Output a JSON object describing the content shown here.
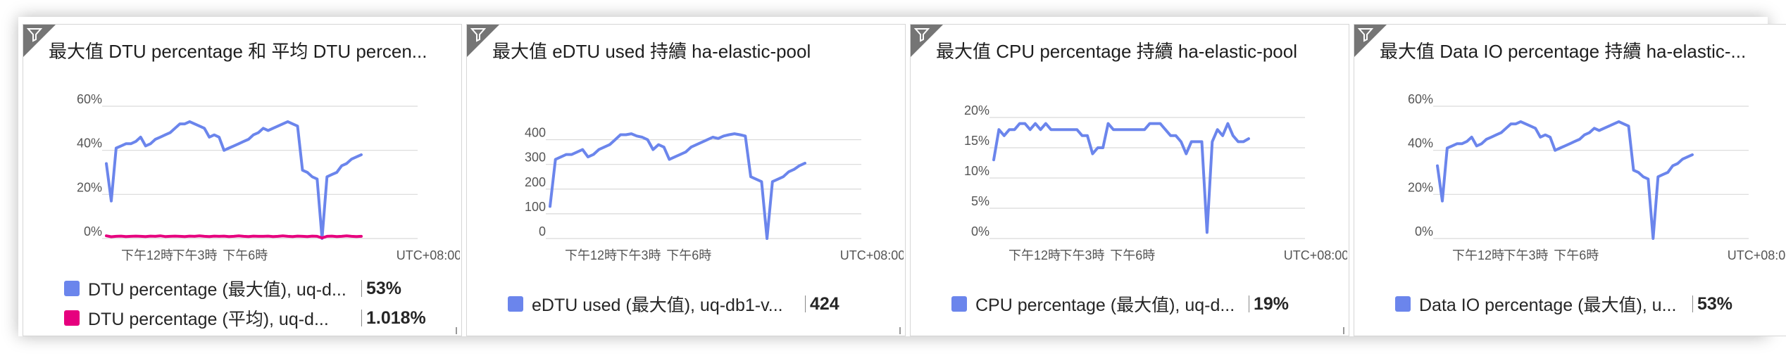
{
  "colors": {
    "primary": "#6b85ec",
    "secondary": "#e6007e",
    "filter_corner": "#757575"
  },
  "icons": {
    "filter": "filter-funnel-icon"
  },
  "tiles": [
    {
      "title": "最大值 DTU percentage 和 平均 DTU percen...",
      "y_ticks": [
        "60%",
        "40%",
        "20%",
        "0%"
      ],
      "x_ticks": [
        "下午12時",
        "下午3時",
        "下午6時"
      ],
      "timezone": "UTC+08:00",
      "legend": [
        {
          "label": "DTU percentage (最大值), uq-d...",
          "value": "53%"
        },
        {
          "label": "DTU percentage (平均), uq-d...",
          "value": "1.018%"
        }
      ]
    },
    {
      "title": "最大值 eDTU used 持續 ha-elastic-pool",
      "y_ticks": [
        "400",
        "300",
        "200",
        "100",
        "0"
      ],
      "x_ticks": [
        "下午12時",
        "下午3時",
        "下午6時"
      ],
      "timezone": "UTC+08:00",
      "legend": [
        {
          "label": "eDTU used (最大值), uq-db1-v...",
          "value": "424"
        }
      ]
    },
    {
      "title": "最大值 CPU percentage 持續 ha-elastic-pool",
      "y_ticks": [
        "20%",
        "15%",
        "10%",
        "5%",
        "0%"
      ],
      "x_ticks": [
        "下午12時",
        "下午3時",
        "下午6時"
      ],
      "timezone": "UTC+08:00",
      "legend": [
        {
          "label": "CPU percentage (最大值), uq-d...",
          "value": "19%"
        }
      ]
    },
    {
      "title": "最大值 Data IO percentage 持續 ha-elastic-...",
      "y_ticks": [
        "60%",
        "40%",
        "20%",
        "0%"
      ],
      "x_ticks": [
        "下午12時",
        "下午3時",
        "下午6時"
      ],
      "timezone": "UTC+08:00",
      "legend": [
        {
          "label": "Data IO percentage (最大值), u...",
          "value": "53%"
        }
      ]
    }
  ],
  "chart_data": [
    {
      "type": "line",
      "title": "最大值 DTU percentage 和 平均 DTU percen...",
      "ylim": [
        0,
        60
      ],
      "y_ticks": [
        0,
        20,
        40,
        60
      ],
      "x_ticks": [
        "下午12時",
        "下午3時",
        "下午6時"
      ],
      "series": [
        {
          "name": "DTU percentage (最大值), uq-d...",
          "values": [
            34,
            17,
            41,
            42,
            43,
            43,
            44,
            46,
            42,
            43,
            45,
            46,
            47,
            48,
            50,
            52,
            52,
            53,
            52,
            51,
            50,
            46,
            47,
            46,
            40,
            41,
            42,
            43,
            44,
            45,
            47,
            48,
            50,
            49,
            50,
            51,
            52,
            53,
            52,
            51,
            31,
            30,
            28,
            27,
            0,
            28,
            29,
            30,
            33,
            34,
            36,
            37,
            38
          ]
        },
        {
          "name": "DTU percentage (平均), uq-d...",
          "values": [
            1.2,
            0.8,
            1.0,
            1.1,
            0.9,
            1.0,
            1.1,
            1.0,
            0.9,
            1.1,
            1.0,
            1.2,
            0.9,
            1.0,
            1.1,
            1.0,
            0.9,
            1.1,
            1.0,
            1.2,
            1.0,
            0.9,
            1.1,
            1.0,
            1.1,
            0.9,
            1.0,
            1.2,
            1.0,
            0.9,
            1.1,
            1.0,
            1.0,
            1.1,
            0.9,
            1.0,
            1.2,
            1.0,
            0.9,
            1.1,
            1.0,
            0.9,
            1.1,
            1.0,
            0.3,
            1.0,
            1.1,
            0.9,
            1.0,
            1.2,
            1.0,
            0.9,
            1.0
          ]
        }
      ]
    },
    {
      "type": "line",
      "title": "最大值 eDTU used 持續 ha-elastic-pool",
      "ylim": [
        0,
        450
      ],
      "y_ticks": [
        0,
        100,
        200,
        300,
        400
      ],
      "x_ticks": [
        "下午12時",
        "下午3時",
        "下午6時"
      ],
      "series": [
        {
          "name": "eDTU used (最大值), uq-db1-v...",
          "values": [
            130,
            320,
            330,
            340,
            340,
            350,
            360,
            330,
            340,
            360,
            370,
            380,
            400,
            420,
            420,
            424,
            415,
            410,
            400,
            360,
            380,
            370,
            320,
            330,
            340,
            350,
            370,
            380,
            390,
            400,
            410,
            405,
            415,
            420,
            424,
            420,
            415,
            250,
            240,
            230,
            0,
            230,
            240,
            250,
            270,
            280,
            295,
            305
          ]
        }
      ]
    },
    {
      "type": "line",
      "title": "最大值 CPU percentage 持續 ha-elastic-pool",
      "ylim": [
        0,
        20
      ],
      "y_ticks": [
        0,
        5,
        10,
        15,
        20
      ],
      "x_ticks": [
        "下午12時",
        "下午3時",
        "下午6時"
      ],
      "series": [
        {
          "name": "CPU percentage (最大值), uq-d...",
          "values": [
            13,
            18,
            17,
            18,
            18,
            19,
            19,
            18,
            19,
            18,
            19,
            18,
            18,
            18,
            18,
            18,
            18,
            17,
            17,
            14,
            15,
            15,
            19,
            18,
            18,
            18,
            18,
            18,
            18,
            18,
            19,
            19,
            19,
            18,
            17,
            17,
            16,
            14,
            16,
            16,
            16,
            1,
            16,
            18,
            17,
            19,
            17,
            16,
            16,
            16.5
          ]
        }
      ]
    },
    {
      "type": "line",
      "title": "最大值 Data IO percentage 持續 ha-elastic-...",
      "ylim": [
        0,
        60
      ],
      "y_ticks": [
        0,
        20,
        40,
        60
      ],
      "x_ticks": [
        "下午12時",
        "下午3時",
        "下午6時"
      ],
      "series": [
        {
          "name": "Data IO percentage (最大值), u...",
          "values": [
            33,
            17,
            41,
            42,
            43,
            43,
            44,
            46,
            42,
            43,
            45,
            46,
            47,
            48,
            50,
            52,
            52,
            53,
            52,
            51,
            50,
            46,
            47,
            46,
            40,
            41,
            42,
            43,
            44,
            45,
            47,
            48,
            50,
            49,
            50,
            51,
            52,
            53,
            52,
            51,
            31,
            30,
            28,
            27,
            0,
            28,
            29,
            30,
            33,
            34,
            36,
            37,
            38
          ]
        }
      ]
    }
  ]
}
